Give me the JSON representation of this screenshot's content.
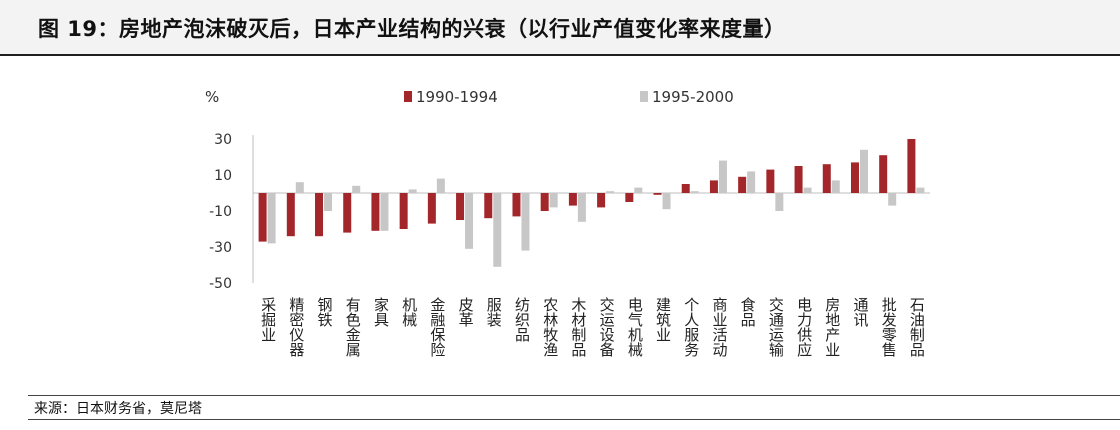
{
  "header": {
    "title": "图 19：房地产泡沫破灭后，日本产业结构的兴衰（以行业产值变化率来度量）"
  },
  "footer": {
    "source": "来源：日本财务省，莫尼塔"
  },
  "colors": {
    "series_1990_1994": "#a3262a",
    "series_1995_2000": "#c7c7c7",
    "axis": "#bfbfbf",
    "title_bg": "#f3f3f3"
  },
  "chart_data": {
    "type": "bar",
    "title": "",
    "xlabel": "",
    "ylabel": "%",
    "ylim": [
      -50,
      30
    ],
    "yticks": [
      30,
      10,
      -10,
      -30,
      -50
    ],
    "grid": false,
    "legend_position": "top",
    "categories": [
      "采掘业",
      "精密仪器",
      "钢铁",
      "有色金属",
      "家具",
      "机械",
      "金融保险",
      "皮革",
      "服装",
      "纺织品",
      "农林牧渔",
      "木材制品",
      "交运设备",
      "电气机械",
      "建筑业",
      "个人服务",
      "商业活动",
      "食品",
      "交通运输",
      "电力供应",
      "房地产业",
      "通讯",
      "批发零售",
      "石油制品"
    ],
    "series": [
      {
        "name": "1990-1994",
        "color": "#a3262a",
        "values": [
          -27,
          -24,
          -24,
          -22,
          -21,
          -20,
          -17,
          -15,
          -14,
          -13,
          -10,
          -7,
          -8,
          -5,
          -1,
          5,
          7,
          9,
          13,
          15,
          16,
          17,
          21,
          30
        ]
      },
      {
        "name": "1995-2000",
        "color": "#c7c7c7",
        "values": [
          -28,
          6,
          -10,
          4,
          -21,
          2,
          8,
          -31,
          -41,
          -32,
          -8,
          -16,
          1,
          3,
          -9,
          1,
          18,
          12,
          -10,
          3,
          7,
          24,
          -7,
          3
        ]
      }
    ]
  }
}
